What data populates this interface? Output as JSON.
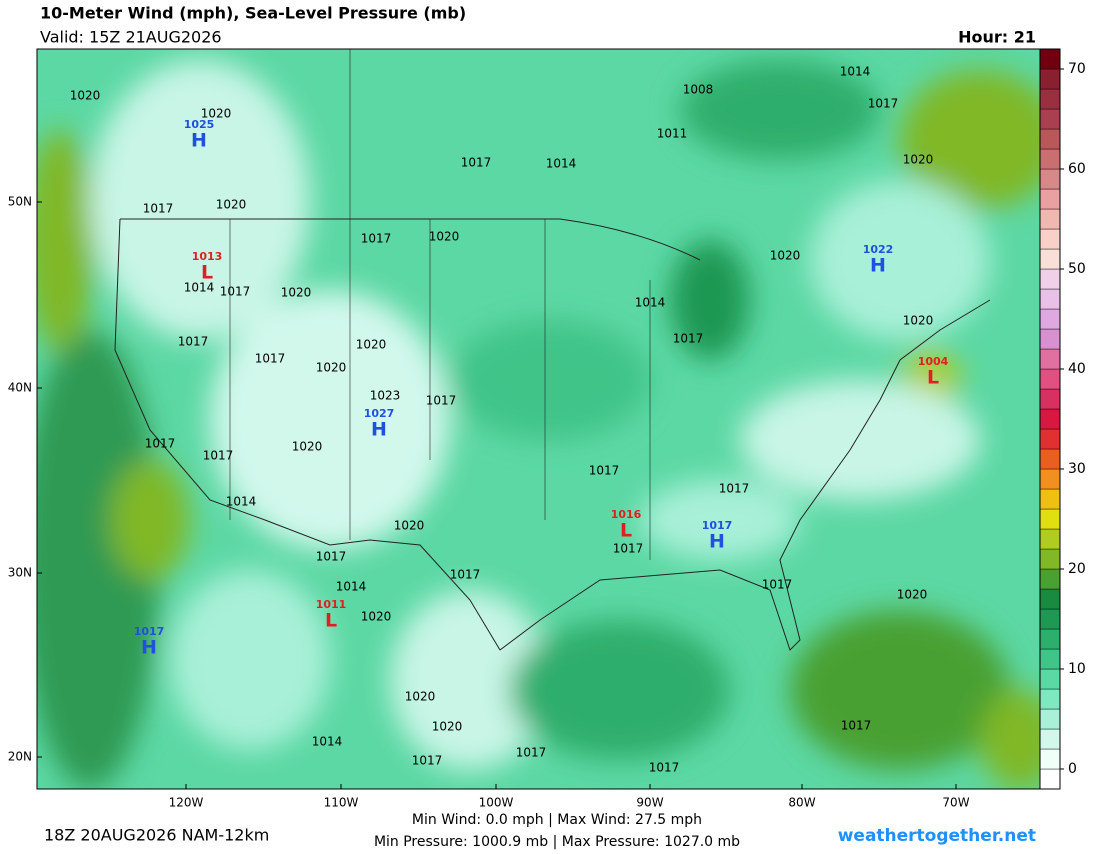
{
  "header": {
    "title": "10-Meter Wind (mph), Sea-Level Pressure (mb)",
    "valid": "Valid: 15Z 21AUG2026",
    "hour": "Hour: 21"
  },
  "map": {
    "lat_labels": [
      "50N",
      "40N",
      "30N",
      "20N"
    ],
    "lon_labels": [
      "120W",
      "110W",
      "100W",
      "90W",
      "80W",
      "70W"
    ],
    "pressure_labels": [
      "1020",
      "1020",
      "1017",
      "1020",
      "1014",
      "1017",
      "1020",
      "1017",
      "1017",
      "1020",
      "1020",
      "1023",
      "1017",
      "1020",
      "1017",
      "1017",
      "1014",
      "1020",
      "1017",
      "1014",
      "1020",
      "1017",
      "1020",
      "1020",
      "1017",
      "1017",
      "1017",
      "1014",
      "1017",
      "1020",
      "1017",
      "1017",
      "1017",
      "1017",
      "1014",
      "1017",
      "1020",
      "1020",
      "1020",
      "1017",
      "1014",
      "1008",
      "1011",
      "1014",
      "1017",
      "1017",
      "1020"
    ],
    "centers": [
      {
        "letter": "H",
        "pressure": "1025",
        "color": "#2050e0"
      },
      {
        "letter": "L",
        "pressure": "1013",
        "color": "#e02020"
      },
      {
        "letter": "H",
        "pressure": "1022",
        "color": "#2050e0"
      },
      {
        "letter": "H",
        "pressure": "1027",
        "color": "#2050e0"
      },
      {
        "letter": "L",
        "pressure": "1016",
        "color": "#e02020"
      },
      {
        "letter": "H",
        "pressure": "1017",
        "color": "#2050e0"
      },
      {
        "letter": "L",
        "pressure": "1011",
        "color": "#e02020"
      },
      {
        "letter": "H",
        "pressure": "1017",
        "color": "#2050e0"
      },
      {
        "letter": "L",
        "pressure": "1004",
        "color": "#e02020"
      }
    ]
  },
  "colorbar": {
    "lim": [
      -2,
      72
    ],
    "ticks": [
      0,
      10,
      20,
      30,
      40,
      50,
      60,
      70
    ],
    "colors": [
      "#ffffff",
      "#f0fff8",
      "#d2f8ec",
      "#a8f0d8",
      "#7fe8c0",
      "#5cd8a4",
      "#40c488",
      "#2eae6c",
      "#1e9852",
      "#1a8a40",
      "#4aa030",
      "#80b828",
      "#b0cc20",
      "#e0e010",
      "#f0c010",
      "#f09020",
      "#e86020",
      "#e03030",
      "#d81840",
      "#d83060",
      "#e05080",
      "#e070a0",
      "#d890d0",
      "#e0a8e0",
      "#e8c0e8",
      "#f0d0e8",
      "#f8e0d8",
      "#f8d0c8",
      "#f0b8b0",
      "#e8a0a0",
      "#d88888",
      "#c87070",
      "#b85858",
      "#a84050",
      "#983040",
      "#882030",
      "#700010"
    ]
  },
  "footer": {
    "run": "18Z 20AUG2026 NAM-12km",
    "wind": "Min Wind:  0.0 mph | Max Wind: 27.5 mph",
    "pressure": "Min Pressure: 1000.9 mb | Max Pressure: 1027.0 mb",
    "site": "weathertogether.net"
  }
}
